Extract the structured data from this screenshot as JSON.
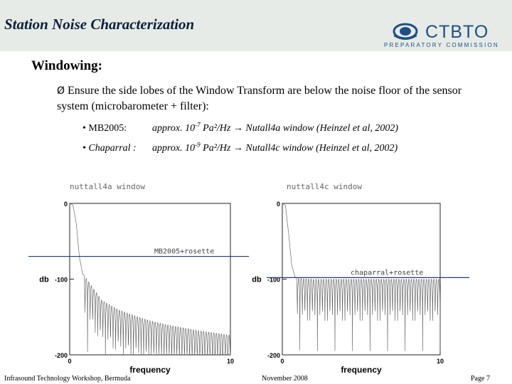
{
  "header": {
    "title": "Station Noise Characterization",
    "logo_text": "CTBTO",
    "logo_sub": "PREPARATORY COMMISSION",
    "logo_icon": "ctbto-globe-icon",
    "background": "#e6ebe7",
    "accent": "#1f4e87"
  },
  "section": {
    "heading": "Windowing:",
    "bullet_marker": "Ø",
    "bullet_text": "Ensure the side lobes of the  Window Transform are below the noise floor of the sensor system (microbarometer + filter):",
    "items": [
      {
        "label": "• MB2005:",
        "value_prefix": "approx. 10",
        "exponent": "-7",
        "value_suffix": " Pa²/Hz → Nutall4a  window (Heinzel et al, 2002)"
      },
      {
        "label": "• Chaparral :",
        "value_prefix": "approx. 10",
        "exponent": "-9",
        "value_suffix": " Pa²/Hz → Nutall4c  window (Heinzel et al, 2002)"
      }
    ]
  },
  "chart_data": [
    {
      "type": "line",
      "title": "nuttall4a window",
      "xlabel": "frequency",
      "ylabel": "db",
      "xlim": [
        0,
        10
      ],
      "ylim": [
        -200,
        0
      ],
      "xticks": [
        "0",
        "10"
      ],
      "yticks": [
        "0",
        "-100",
        "-200"
      ],
      "line_color": "#555555",
      "series": [
        {
          "x": [
            0,
            0.2,
            0.4,
            0.6,
            0.8,
            1.0,
            2,
            3,
            4,
            5,
            6,
            7,
            8,
            9,
            10
          ],
          "envelope_db": [
            0,
            -2,
            -25,
            -70,
            -93,
            -98,
            -128,
            -140,
            -148,
            -155,
            -160,
            -164,
            -168,
            -171,
            -174
          ]
        }
      ],
      "reference_line": {
        "label": "MB2005+rosette",
        "y": -70,
        "color": "#1f3a8a"
      }
    },
    {
      "type": "line",
      "title": "nuttall4c window",
      "xlabel": "frequency",
      "ylabel": "db",
      "xlim": [
        0,
        10
      ],
      "ylim": [
        -200,
        0
      ],
      "xticks": [
        "0",
        "10"
      ],
      "yticks": [
        "0",
        "-100",
        "-200"
      ],
      "line_color": "#555555",
      "series": [
        {
          "x": [
            0,
            0.2,
            0.4,
            0.6,
            0.8,
            1.0,
            2,
            3,
            4,
            5,
            6,
            7,
            8,
            9,
            10
          ],
          "envelope_db": [
            0,
            -3,
            -40,
            -82,
            -97,
            -99,
            -100,
            -100,
            -100,
            -100,
            -100,
            -100,
            -100,
            -100,
            -100
          ]
        }
      ],
      "reference_line": {
        "label": "chaparral+rosette",
        "y": -98,
        "color": "#1f3a8a"
      }
    }
  ],
  "footer": {
    "left": "Infrasound Technology Workshop, Bermuda",
    "center": "November 2008",
    "right": "Page 7"
  }
}
